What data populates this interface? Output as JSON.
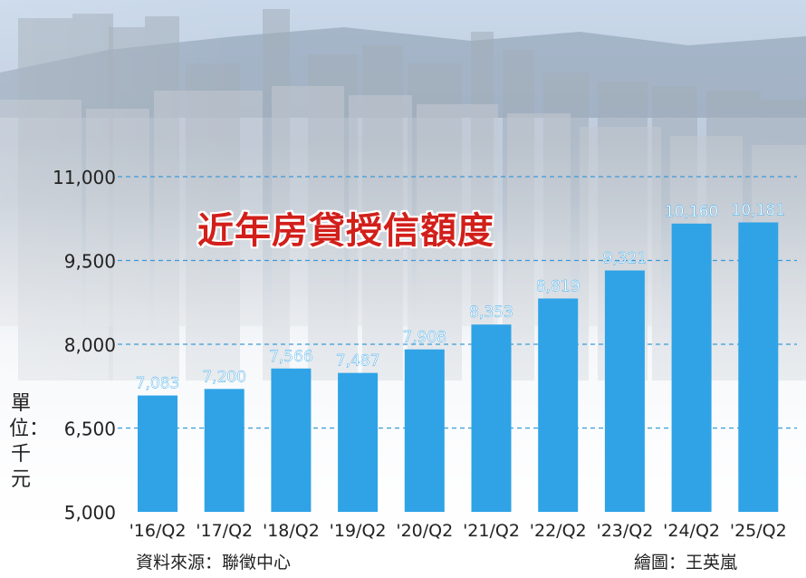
{
  "title": "近年房貸授信額度",
  "unit_label": "單位：千元",
  "source": "資料來源：聯徵中心",
  "credit": "繪圖：王英嵐",
  "colors": {
    "bar": "#2fa3e6",
    "value_label": "#ffffff",
    "title": "#d21f1a",
    "gridline": "#3a9ad9"
  },
  "chart_data": {
    "type": "bar",
    "categories": [
      "'16/Q2",
      "'17/Q2",
      "'18/Q2",
      "'19/Q2",
      "'20/Q2",
      "'21/Q2",
      "'22/Q2",
      "'23/Q2",
      "'24/Q2",
      "'25/Q2"
    ],
    "values": [
      7083,
      7200,
      7566,
      7487,
      7908,
      8353,
      8819,
      9321,
      10160,
      10181
    ],
    "value_labels": [
      "7,083",
      "7,200",
      "7,566",
      "7,487",
      "7,908",
      "8,353",
      "8,819",
      "9,321",
      "10,160",
      "10,181"
    ],
    "yticks": [
      5000,
      6500,
      8000,
      9500,
      11000
    ],
    "ytick_labels": [
      "5,000",
      "6,500",
      "8,000",
      "9,500",
      "11,000"
    ],
    "ylim": [
      5000,
      11000
    ],
    "grid": true
  }
}
